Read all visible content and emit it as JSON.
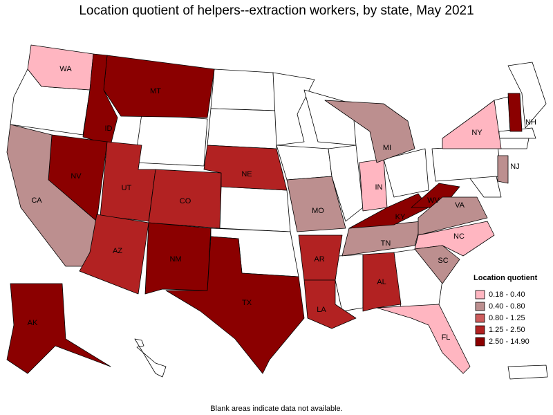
{
  "title": "Location quotient of helpers--extraction workers, by state, May 2021",
  "footnote": "Blank areas indicate data not available.",
  "legend": {
    "title": "Location quotient",
    "items": [
      {
        "label": "0.18 - 0.40",
        "color": "#ffb6c1"
      },
      {
        "label": "0.40 - 0.80",
        "color": "#bc8f8f"
      },
      {
        "label": "0.80 - 1.25",
        "color": "#cd5c5c"
      },
      {
        "label": "1.25 - 2.50",
        "color": "#b22222"
      },
      {
        "label": "2.50 - 14.90",
        "color": "#8b0000"
      }
    ]
  },
  "states": [
    {
      "abbr": "WA",
      "class": 0
    },
    {
      "abbr": "MT",
      "class": 4
    },
    {
      "abbr": "ID",
      "class": 4
    },
    {
      "abbr": "NV",
      "class": 4
    },
    {
      "abbr": "UT",
      "class": 3
    },
    {
      "abbr": "CO",
      "class": 3
    },
    {
      "abbr": "NE",
      "class": 3
    },
    {
      "abbr": "CA",
      "class": 1
    },
    {
      "abbr": "AZ",
      "class": 3
    },
    {
      "abbr": "NM",
      "class": 4
    },
    {
      "abbr": "TX",
      "class": 4
    },
    {
      "abbr": "MO",
      "class": 1
    },
    {
      "abbr": "AR",
      "class": 3
    },
    {
      "abbr": "LA",
      "class": 3
    },
    {
      "abbr": "AL",
      "class": 3
    },
    {
      "abbr": "TN",
      "class": 1
    },
    {
      "abbr": "KY",
      "class": 4
    },
    {
      "abbr": "WV",
      "class": 4
    },
    {
      "abbr": "VA",
      "class": 1
    },
    {
      "abbr": "NC",
      "class": 0
    },
    {
      "abbr": "SC",
      "class": 1
    },
    {
      "abbr": "FL",
      "class": 0
    },
    {
      "abbr": "IN",
      "class": 0
    },
    {
      "abbr": "MI",
      "class": 1
    },
    {
      "abbr": "NY",
      "class": 0
    },
    {
      "abbr": "NH",
      "class": 4
    },
    {
      "abbr": "NJ",
      "class": 1
    },
    {
      "abbr": "AK",
      "class": 4
    }
  ]
}
